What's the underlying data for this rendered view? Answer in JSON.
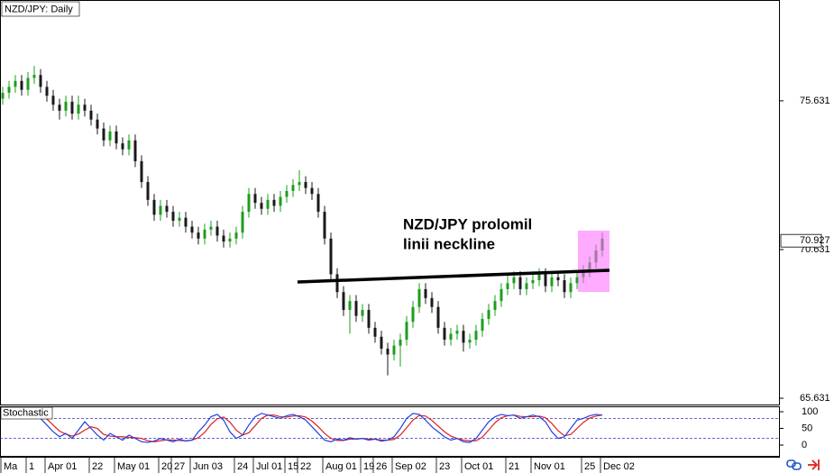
{
  "chart_data": {
    "type": "candlestick",
    "title": "NZD/JPY: Daily",
    "annotation": [
      "NZD/JPY prolomil",
      "linii neckline"
    ],
    "last_price": 70.927,
    "ylim": [
      65.39,
      79.02
    ],
    "yticks": [
      65.631,
      70.631,
      75.631
    ],
    "up_color": "#1e9e1e",
    "down_color": "#1a1a1a",
    "categories": [
      "Ma",
      null,
      null,
      null,
      "1",
      null,
      null,
      "Apr 01",
      null,
      null,
      null,
      null,
      null,
      null,
      "22",
      null,
      null,
      null,
      "May 01",
      null,
      null,
      null,
      null,
      null,
      null,
      "20",
      null,
      "27",
      null,
      null,
      "Jun 03",
      null,
      null,
      null,
      null,
      null,
      null,
      "24",
      null,
      null,
      "Jul 01",
      null,
      null,
      null,
      null,
      "15",
      null,
      "22",
      null,
      null,
      null,
      "Aug 01",
      null,
      null,
      null,
      null,
      null,
      "19",
      null,
      "26",
      null,
      null,
      "Sep 02",
      null,
      null,
      null,
      null,
      null,
      null,
      "23",
      null,
      null,
      null,
      "Oct 01",
      null,
      null,
      null,
      null,
      null,
      null,
      "21",
      null,
      null,
      null,
      "Nov 01",
      null,
      null,
      null,
      null,
      null,
      null,
      null,
      "25",
      null,
      null,
      "Dec 02"
    ],
    "open": [
      75.7,
      75.9,
      76.1,
      76.3,
      76.0,
      76.4,
      76.5,
      76.1,
      75.8,
      75.5,
      75.3,
      75.6,
      75.2,
      75.5,
      75.3,
      75.0,
      74.7,
      74.3,
      74.6,
      74.2,
      74.0,
      74.3,
      73.6,
      72.9,
      72.3,
      71.8,
      72.1,
      71.9,
      71.6,
      71.7,
      71.4,
      71.2,
      71.0,
      71.3,
      71.4,
      71.1,
      70.9,
      71.0,
      71.2,
      71.9,
      72.5,
      72.2,
      72.0,
      72.3,
      72.1,
      72.4,
      72.6,
      72.8,
      72.9,
      72.7,
      72.5,
      71.9,
      71.0,
      69.8,
      69.2,
      68.6,
      68.9,
      68.4,
      68.6,
      68.0,
      67.7,
      67.3,
      67.1,
      67.4,
      67.6,
      68.2,
      68.7,
      69.3,
      69.0,
      68.7,
      68.0,
      67.6,
      67.8,
      67.9,
      67.5,
      67.6,
      67.9,
      68.3,
      68.6,
      68.9,
      69.3,
      69.5,
      69.7,
      69.3,
      69.5,
      69.6,
      69.8,
      69.4,
      69.7,
      69.6,
      69.2,
      69.5,
      69.7,
      69.9,
      70.2,
      70.6
    ],
    "high": [
      76.1,
      76.3,
      76.5,
      76.5,
      76.6,
      76.8,
      76.7,
      76.3,
      76.0,
      75.7,
      75.8,
      75.8,
      75.8,
      75.7,
      75.5,
      75.2,
      74.9,
      74.8,
      74.8,
      74.4,
      74.5,
      74.5,
      73.8,
      73.1,
      72.5,
      72.3,
      72.3,
      72.1,
      71.9,
      71.9,
      71.6,
      71.4,
      71.5,
      71.6,
      71.6,
      71.3,
      71.2,
      71.4,
      72.1,
      72.7,
      72.7,
      72.4,
      72.5,
      72.5,
      72.6,
      72.8,
      73.0,
      73.3,
      73.1,
      72.9,
      72.7,
      72.1,
      71.2,
      70.0,
      69.4,
      69.1,
      69.1,
      68.8,
      68.8,
      68.2,
      67.9,
      67.5,
      67.6,
      67.8,
      68.4,
      68.9,
      69.5,
      69.5,
      69.2,
      68.9,
      68.2,
      68.0,
      68.1,
      68.1,
      67.8,
      68.1,
      68.5,
      68.8,
      69.1,
      69.5,
      69.8,
      69.9,
      69.9,
      69.7,
      69.9,
      70.0,
      70.0,
      69.9,
      69.9,
      69.8,
      69.7,
      69.9,
      70.1,
      70.4,
      70.8,
      71.2
    ],
    "low": [
      75.5,
      75.7,
      75.9,
      75.8,
      75.8,
      76.2,
      75.9,
      75.6,
      75.3,
      75.0,
      75.1,
      75.0,
      75.0,
      75.1,
      74.8,
      74.5,
      74.1,
      74.1,
      74.0,
      73.8,
      73.8,
      73.4,
      72.7,
      72.1,
      71.6,
      71.6,
      71.7,
      71.4,
      71.4,
      71.2,
      71.0,
      70.8,
      70.8,
      71.1,
      70.9,
      70.7,
      70.7,
      70.8,
      71.0,
      71.7,
      72.0,
      71.8,
      71.8,
      71.9,
      71.9,
      72.2,
      72.4,
      72.6,
      72.5,
      72.3,
      71.7,
      70.8,
      69.6,
      69.0,
      68.4,
      67.8,
      68.2,
      68.2,
      67.8,
      67.5,
      67.1,
      66.4,
      66.9,
      66.7,
      67.4,
      68.0,
      68.5,
      68.8,
      68.5,
      67.8,
      67.4,
      67.4,
      67.6,
      67.2,
      67.3,
      67.4,
      67.7,
      68.1,
      68.4,
      68.7,
      69.1,
      69.3,
      69.1,
      69.1,
      69.3,
      69.4,
      69.2,
      69.2,
      69.4,
      69.0,
      69.0,
      69.3,
      69.5,
      69.7,
      70.0,
      70.4
    ],
    "close": [
      75.9,
      76.1,
      76.3,
      76.0,
      76.4,
      76.5,
      76.1,
      75.8,
      75.5,
      75.3,
      75.6,
      75.2,
      75.5,
      75.3,
      75.0,
      74.7,
      74.3,
      74.6,
      74.2,
      74.0,
      74.3,
      73.6,
      72.9,
      72.3,
      71.8,
      72.1,
      71.9,
      71.6,
      71.7,
      71.4,
      71.2,
      71.0,
      71.3,
      71.4,
      71.1,
      70.9,
      71.0,
      71.2,
      71.9,
      72.5,
      72.2,
      72.0,
      72.3,
      72.1,
      72.4,
      72.6,
      72.8,
      72.9,
      72.7,
      72.5,
      71.9,
      71.0,
      69.8,
      69.2,
      68.6,
      68.9,
      68.4,
      68.6,
      68.0,
      67.7,
      67.3,
      67.1,
      67.4,
      67.6,
      68.2,
      68.7,
      69.3,
      69.0,
      68.7,
      68.0,
      67.6,
      67.8,
      67.9,
      67.5,
      67.6,
      67.9,
      68.3,
      68.6,
      68.9,
      69.3,
      69.5,
      69.7,
      69.3,
      69.5,
      69.6,
      69.8,
      69.4,
      69.7,
      69.6,
      69.2,
      69.5,
      69.7,
      69.9,
      70.2,
      70.6,
      71.0
    ],
    "indicator": {
      "title": "Stochastic",
      "ylim": [
        -35,
        113.5
      ],
      "yticks": [
        0,
        50,
        100
      ],
      "levels": [
        80,
        20
      ],
      "level_color": "#3333cc",
      "series": [
        {
          "color": "#e02020",
          "values": [
            82,
            86,
            90,
            92,
            92,
            92,
            89,
            78,
            60,
            42,
            33,
            27,
            33,
            45,
            55,
            50,
            32,
            27,
            25,
            25,
            23,
            22,
            20,
            13,
            10,
            13,
            16,
            15,
            14,
            13,
            15,
            22,
            38,
            62,
            79,
            84,
            69,
            45,
            30,
            37,
            58,
            80,
            90,
            90,
            85,
            84,
            87,
            88,
            84,
            72,
            55,
            35,
            20,
            14,
            14,
            18,
            18,
            20,
            18,
            18,
            15,
            15,
            17,
            30,
            52,
            75,
            89,
            87,
            74,
            57,
            40,
            27,
            20,
            15,
            13,
            13,
            24,
            45,
            67,
            82,
            88,
            90,
            86,
            85,
            85,
            87,
            82,
            65,
            43,
            28,
            32,
            50,
            68,
            81,
            87,
            90
          ]
        },
        {
          "color": "#2040e0",
          "values": [
            85,
            92,
            95,
            88,
            93,
            95,
            80,
            60,
            40,
            25,
            35,
            20,
            45,
            70,
            50,
            30,
            15,
            35,
            25,
            15,
            30,
            20,
            10,
            8,
            12,
            20,
            15,
            10,
            18,
            12,
            15,
            40,
            60,
            85,
            92,
            75,
            40,
            20,
            30,
            60,
            85,
            95,
            90,
            85,
            80,
            88,
            92,
            85,
            75,
            55,
            35,
            15,
            10,
            18,
            15,
            22,
            18,
            20,
            15,
            18,
            12,
            15,
            25,
            50,
            80,
            95,
            92,
            75,
            55,
            40,
            25,
            15,
            20,
            10,
            8,
            20,
            45,
            70,
            85,
            92,
            88,
            90,
            80,
            85,
            90,
            85,
            70,
            40,
            20,
            25,
            50,
            75,
            80,
            88,
            92,
            90
          ]
        }
      ]
    }
  }
}
